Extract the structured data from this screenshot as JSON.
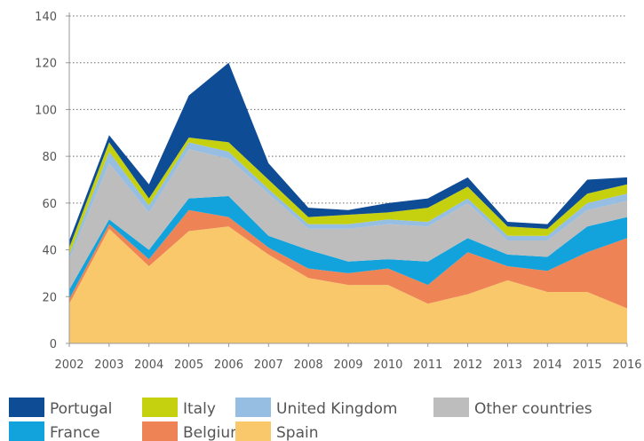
{
  "chart_data": {
    "type": "area",
    "stacked": true,
    "title": "",
    "xlabel": "",
    "ylabel": "",
    "x": [
      "2002",
      "2003",
      "2004",
      "2005",
      "2006",
      "2007",
      "2008",
      "2009",
      "2010",
      "2011",
      "2012",
      "2013",
      "2014",
      "2015",
      "2016"
    ],
    "ylim": [
      0,
      140
    ],
    "yticks": [
      0,
      20,
      40,
      60,
      80,
      100,
      120,
      140
    ],
    "grid": "horizontal-dotted",
    "legend_position": "bottom",
    "series": [
      {
        "name": "Spain",
        "color": "#f9c86a",
        "values": [
          17,
          49,
          33,
          48,
          50,
          38,
          28,
          25,
          25,
          17,
          21,
          27,
          22,
          22,
          15
        ]
      },
      {
        "name": "Belgium",
        "color": "#ee8456",
        "values": [
          2,
          2,
          3,
          9,
          4,
          3,
          4,
          5,
          7,
          8,
          18,
          6,
          9,
          17,
          30
        ]
      },
      {
        "name": "France",
        "color": "#12a3dd",
        "values": [
          4,
          2,
          4,
          5,
          9,
          5,
          8,
          5,
          4,
          10,
          6,
          5,
          6,
          11,
          9
        ]
      },
      {
        "name": "Other countries",
        "color": "#bdbdbd",
        "values": [
          13,
          24,
          16,
          21,
          16,
          18,
          9,
          14,
          15,
          15,
          15,
          6,
          7,
          7,
          7
        ]
      },
      {
        "name": "United Kingdom",
        "color": "#96bde2",
        "values": [
          2,
          5,
          3,
          3,
          3,
          2,
          2,
          2,
          2,
          2,
          2,
          2,
          2,
          3,
          3
        ]
      },
      {
        "name": "Italy",
        "color": "#c5d10e",
        "values": [
          3,
          4,
          3,
          2,
          4,
          4,
          3,
          4,
          3,
          6,
          5,
          4,
          3,
          4,
          4
        ]
      },
      {
        "name": "Portugal",
        "color": "#0f4c96",
        "values": [
          3,
          3,
          6,
          18,
          34,
          7,
          4,
          2,
          4,
          4,
          4,
          2,
          2,
          6,
          3
        ]
      }
    ],
    "legend": [
      "Portugal",
      "Italy",
      "United Kingdom",
      "Other countries",
      "France",
      "Belgium",
      "Spain"
    ]
  }
}
